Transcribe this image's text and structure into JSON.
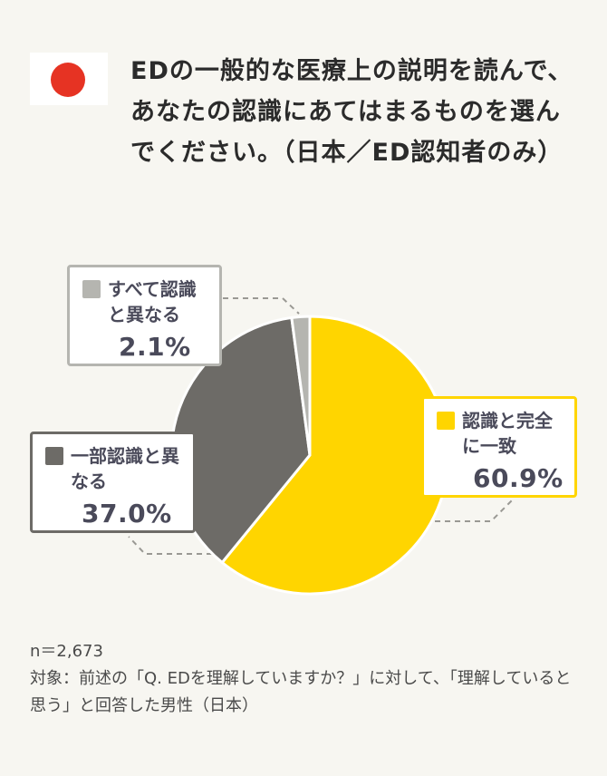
{
  "title": "EDの一般的な医療上の説明を読んで、あなたの認識にあてはまるものを選んでください。（日本／ED認知者のみ）",
  "footnote": {
    "sample": "n＝2,673",
    "target": "対象：前述の「Q. EDを理解していますか？」に対して、「理解していると思う」と回答した男性（日本）"
  },
  "colors": {
    "match": "#ffd500",
    "partial": "#6d6b67",
    "differ": "#b5b5b0",
    "flag_sun": "#e63323"
  },
  "chart_data": {
    "type": "pie",
    "categories": [
      "認識と完全に一致",
      "一部認識と異なる",
      "すべて認識と異なる"
    ],
    "values": [
      60.9,
      37.0,
      2.1
    ],
    "value_labels": [
      "60.9%",
      "37.0%",
      "2.1%"
    ],
    "title": "",
    "legend": "callouts"
  }
}
